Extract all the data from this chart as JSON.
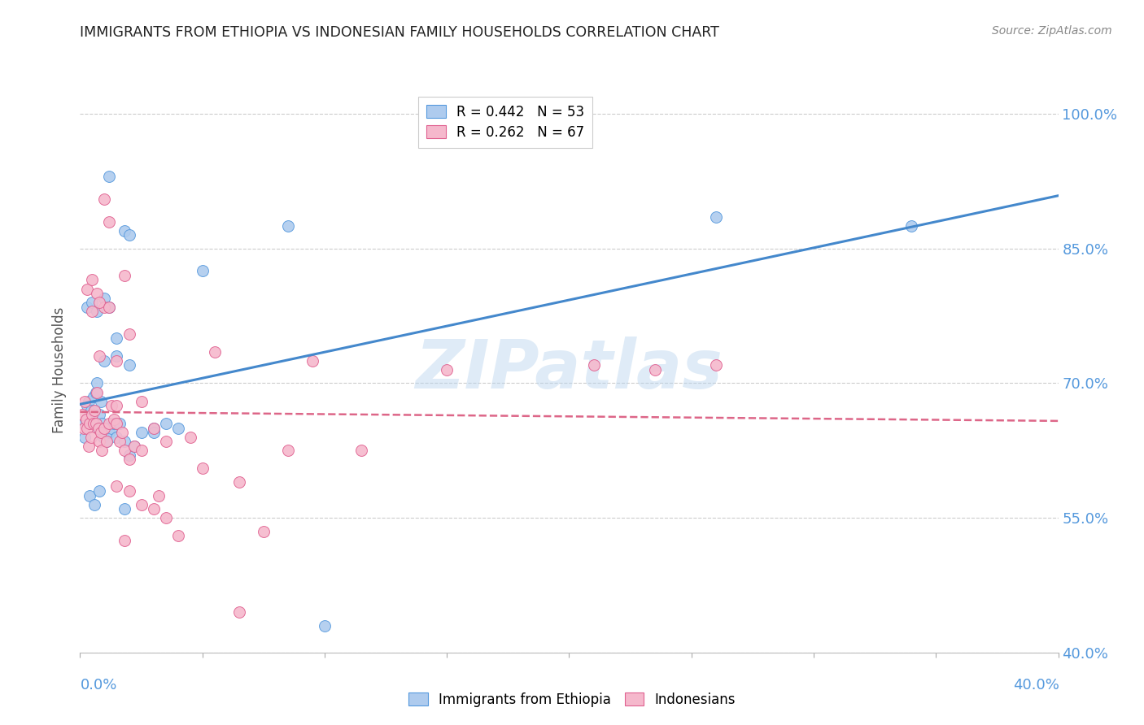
{
  "title": "IMMIGRANTS FROM ETHIOPIA VS INDONESIAN FAMILY HOUSEHOLDS CORRELATION CHART",
  "source": "Source: ZipAtlas.com",
  "ylabel": "Family Households",
  "xmin": 0.0,
  "xmax": 40.0,
  "ymin": 40.0,
  "ymax": 103.0,
  "ytick_vals": [
    40.0,
    55.0,
    70.0,
    85.0,
    100.0
  ],
  "ethiopia_color": "#aecbee",
  "ethiopia_edge_color": "#5599dd",
  "indonesia_color": "#f5b8cc",
  "indonesia_edge_color": "#e06090",
  "ethiopia_line_color": "#4488cc",
  "indonesia_line_color": "#dd6688",
  "background_color": "#ffffff",
  "grid_color": "#cccccc",
  "legend_eth": "R = 0.442   N = 53",
  "legend_ind": "R = 0.262   N = 67",
  "legend_eth_label": "Immigrants from Ethiopia",
  "legend_ind_label": "Indonesians",
  "title_color": "#222222",
  "source_color": "#888888",
  "axis_label_color": "#555555",
  "tick_color": "#5599dd",
  "watermark": "ZIPatlas",
  "eth_x": [
    0.15,
    0.2,
    0.25,
    0.3,
    0.35,
    0.4,
    0.45,
    0.5,
    0.55,
    0.6,
    0.65,
    0.7,
    0.75,
    0.8,
    0.85,
    0.9,
    0.95,
    1.0,
    1.1,
    1.2,
    1.3,
    1.4,
    1.5,
    1.6,
    1.8,
    2.0,
    2.2,
    2.5,
    3.0,
    3.5,
    0.3,
    0.5,
    0.7,
    1.0,
    1.2,
    1.5,
    1.8,
    0.4,
    0.6,
    0.8,
    1.0,
    1.5,
    2.0,
    8.5,
    1.8,
    5.0,
    26.0,
    34.0,
    2.0,
    3.0,
    4.0,
    10.0,
    1.2
  ],
  "eth_y": [
    65.5,
    64.0,
    66.0,
    67.5,
    68.0,
    65.5,
    67.0,
    66.0,
    68.5,
    67.0,
    69.0,
    70.0,
    65.0,
    66.5,
    68.0,
    65.5,
    64.0,
    65.0,
    63.5,
    64.5,
    65.0,
    65.5,
    64.0,
    65.5,
    63.5,
    62.0,
    63.0,
    64.5,
    65.0,
    65.5,
    78.5,
    79.0,
    78.0,
    79.5,
    78.5,
    75.0,
    56.0,
    57.5,
    56.5,
    58.0,
    72.5,
    73.0,
    72.0,
    87.5,
    87.0,
    82.5,
    88.5,
    87.5,
    86.5,
    64.5,
    65.0,
    43.0,
    93.0
  ],
  "ind_x": [
    0.1,
    0.15,
    0.2,
    0.25,
    0.3,
    0.35,
    0.4,
    0.45,
    0.5,
    0.55,
    0.6,
    0.65,
    0.7,
    0.75,
    0.8,
    0.85,
    0.9,
    1.0,
    1.1,
    1.2,
    1.3,
    1.4,
    1.5,
    1.6,
    1.7,
    1.8,
    2.0,
    2.2,
    2.5,
    3.0,
    0.3,
    0.5,
    0.7,
    1.0,
    0.5,
    0.8,
    1.2,
    1.5,
    1.8,
    2.0,
    2.5,
    3.0,
    3.5,
    0.8,
    1.5,
    2.0,
    5.5,
    15.0,
    21.0,
    26.0,
    1.0,
    1.5,
    1.8,
    2.5,
    3.5,
    5.0,
    8.5,
    11.5,
    4.0,
    7.5,
    6.5,
    1.2,
    4.5,
    9.5,
    23.5,
    6.5,
    3.2
  ],
  "ind_y": [
    66.5,
    65.0,
    68.0,
    66.0,
    65.0,
    63.0,
    65.5,
    64.0,
    66.5,
    65.5,
    67.0,
    65.5,
    69.0,
    65.0,
    63.5,
    64.5,
    62.5,
    65.0,
    63.5,
    65.5,
    67.5,
    66.0,
    65.5,
    63.5,
    64.5,
    62.5,
    61.5,
    63.0,
    62.5,
    65.0,
    80.5,
    81.5,
    80.0,
    78.5,
    78.0,
    79.0,
    78.5,
    58.5,
    52.5,
    58.0,
    56.5,
    56.0,
    55.0,
    73.0,
    72.5,
    75.5,
    73.5,
    71.5,
    72.0,
    72.0,
    90.5,
    67.5,
    82.0,
    68.0,
    63.5,
    60.5,
    62.5,
    62.5,
    53.0,
    53.5,
    44.5,
    88.0,
    64.0,
    72.5,
    71.5,
    59.0,
    57.5
  ]
}
